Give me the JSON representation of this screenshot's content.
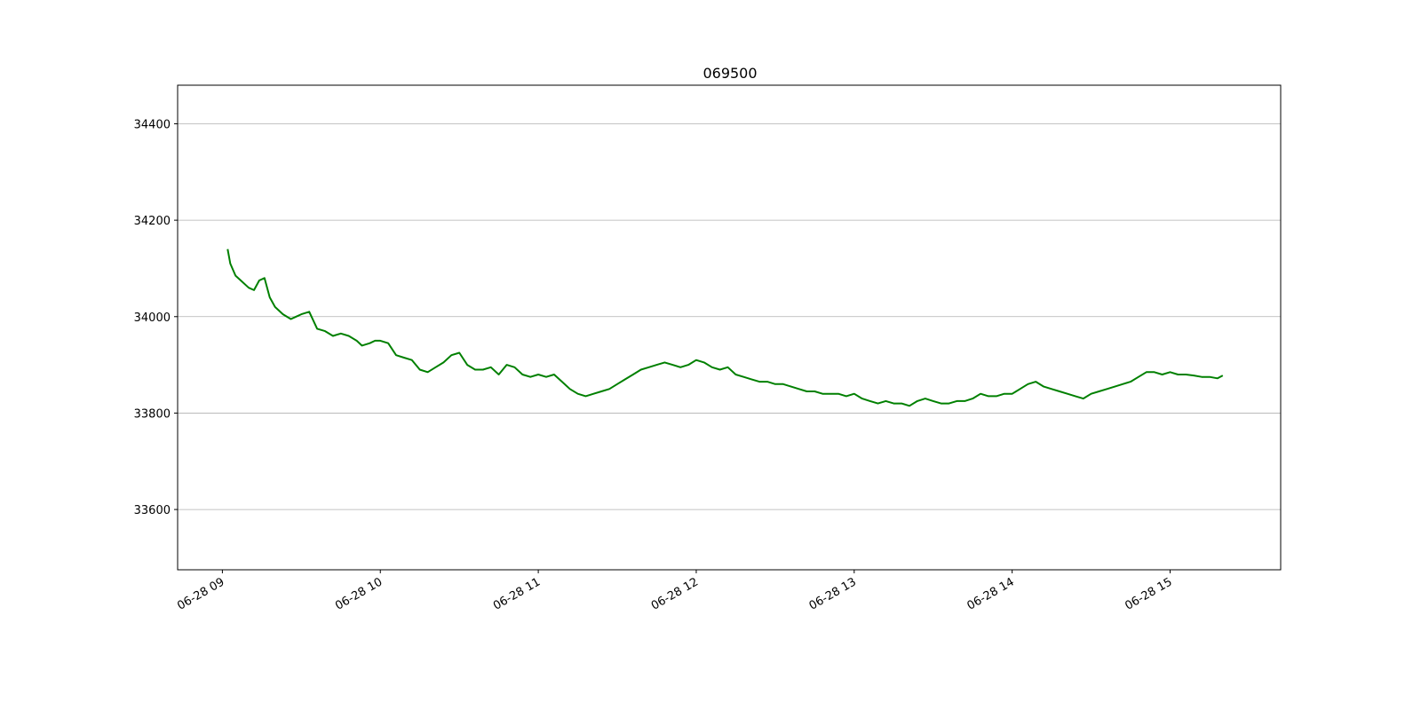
{
  "chart_data": {
    "type": "line",
    "title": "069500",
    "xlabel": "",
    "ylabel": "",
    "ylim": [
      33475,
      34480
    ],
    "xlim": [
      "06-28 08:43",
      "06-28 15:42"
    ],
    "grid": {
      "y": true,
      "x": false
    },
    "yticks": [
      33600,
      33800,
      34000,
      34200,
      34400
    ],
    "xticks": [
      "06-28 09",
      "06-28 10",
      "06-28 11",
      "06-28 12",
      "06-28 13",
      "06-28 14",
      "06-28 15"
    ],
    "series": [
      {
        "color": "#008000",
        "x": [
          "09:02",
          "09:03",
          "09:05",
          "09:07",
          "09:10",
          "09:12",
          "09:14",
          "09:16",
          "09:18",
          "09:20",
          "09:23",
          "09:26",
          "09:28",
          "09:30",
          "09:33",
          "09:36",
          "09:39",
          "09:42",
          "09:45",
          "09:48",
          "09:51",
          "09:53",
          "09:56",
          "09:58",
          "10:00",
          "10:03",
          "10:06",
          "10:09",
          "10:12",
          "10:15",
          "10:18",
          "10:21",
          "10:24",
          "10:27",
          "10:30",
          "10:33",
          "10:36",
          "10:39",
          "10:42",
          "10:45",
          "10:48",
          "10:51",
          "10:54",
          "10:57",
          "11:00",
          "11:03",
          "11:06",
          "11:09",
          "11:12",
          "11:15",
          "11:18",
          "11:21",
          "11:24",
          "11:27",
          "11:30",
          "11:33",
          "11:36",
          "11:39",
          "11:42",
          "11:45",
          "11:48",
          "11:51",
          "11:54",
          "11:57",
          "12:00",
          "12:03",
          "12:06",
          "12:09",
          "12:12",
          "12:15",
          "12:18",
          "12:21",
          "12:24",
          "12:27",
          "12:30",
          "12:33",
          "12:36",
          "12:39",
          "12:42",
          "12:45",
          "12:48",
          "12:51",
          "12:54",
          "12:57",
          "13:00",
          "13:03",
          "13:06",
          "13:09",
          "13:12",
          "13:15",
          "13:18",
          "13:21",
          "13:24",
          "13:27",
          "13:30",
          "13:33",
          "13:36",
          "13:39",
          "13:42",
          "13:45",
          "13:48",
          "13:51",
          "13:54",
          "13:57",
          "14:00",
          "14:03",
          "14:06",
          "14:09",
          "14:12",
          "14:15",
          "14:18",
          "14:21",
          "14:24",
          "14:27",
          "14:30",
          "14:33",
          "14:36",
          "14:39",
          "14:42",
          "14:45",
          "14:48",
          "14:51",
          "14:54",
          "14:57",
          "15:00",
          "15:03",
          "15:06",
          "15:09",
          "15:12",
          "15:15",
          "15:18",
          "15:20"
        ],
        "values": [
          34140,
          34110,
          34085,
          34075,
          34060,
          34055,
          34075,
          34080,
          34040,
          34020,
          34005,
          33995,
          34000,
          34005,
          34010,
          33975,
          33970,
          33960,
          33965,
          33960,
          33950,
          33940,
          33945,
          33950,
          33950,
          33945,
          33920,
          33915,
          33910,
          33890,
          33885,
          33895,
          33905,
          33920,
          33925,
          33900,
          33890,
          33890,
          33895,
          33880,
          33900,
          33895,
          33880,
          33875,
          33880,
          33875,
          33880,
          33865,
          33850,
          33840,
          33835,
          33840,
          33845,
          33850,
          33860,
          33870,
          33880,
          33890,
          33895,
          33900,
          33905,
          33900,
          33895,
          33900,
          33910,
          33905,
          33895,
          33890,
          33895,
          33880,
          33875,
          33870,
          33865,
          33865,
          33860,
          33860,
          33855,
          33850,
          33845,
          33845,
          33840,
          33840,
          33840,
          33835,
          33840,
          33830,
          33825,
          33820,
          33825,
          33820,
          33820,
          33815,
          33825,
          33830,
          33825,
          33820,
          33820,
          33825,
          33825,
          33830,
          33840,
          33835,
          33835,
          33840,
          33840,
          33850,
          33860,
          33865,
          33855,
          33850,
          33845,
          33840,
          33835,
          33830,
          33840,
          33845,
          33850,
          33855,
          33860,
          33865,
          33875,
          33885,
          33885,
          33880,
          33885,
          33880,
          33880,
          33878,
          33875,
          33875,
          33872,
          33878
        ]
      }
    ]
  }
}
